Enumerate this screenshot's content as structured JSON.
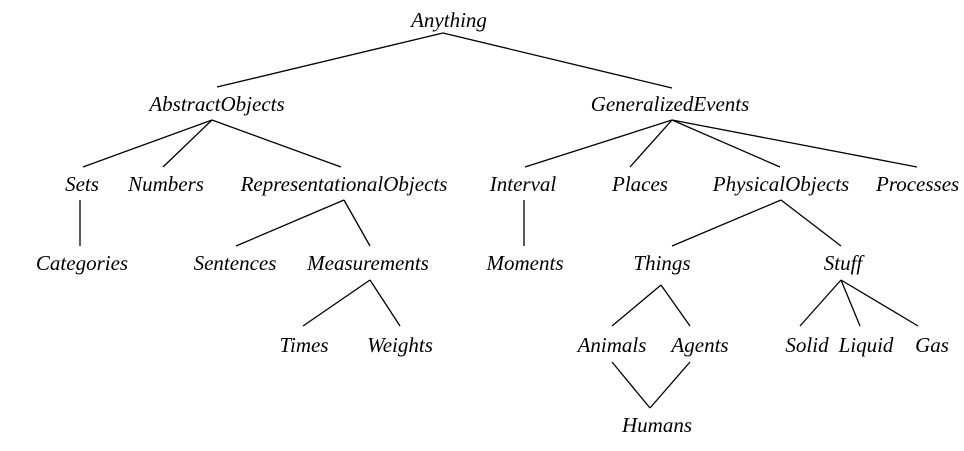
{
  "nodes": {
    "anything": "Anything",
    "abstract_objects": "AbstractObjects",
    "generalized_events": "GeneralizedEvents",
    "sets": "Sets",
    "numbers": "Numbers",
    "representational_objects": "RepresentationalObjects",
    "interval": "Interval",
    "places": "Places",
    "physical_objects": "PhysicalObjects",
    "processes": "Processes",
    "categories": "Categories",
    "sentences": "Sentences",
    "measurements": "Measurements",
    "moments": "Moments",
    "things": "Things",
    "stuff": "Stuff",
    "times": "Times",
    "weights": "Weights",
    "animals": "Animals",
    "agents": "Agents",
    "solid": "Solid",
    "liquid": "Liquid",
    "gas": "Gas",
    "humans": "Humans"
  },
  "edges": [
    [
      "anything",
      "abstract_objects"
    ],
    [
      "anything",
      "generalized_events"
    ],
    [
      "abstract_objects",
      "sets"
    ],
    [
      "abstract_objects",
      "numbers"
    ],
    [
      "abstract_objects",
      "representational_objects"
    ],
    [
      "generalized_events",
      "interval"
    ],
    [
      "generalized_events",
      "places"
    ],
    [
      "generalized_events",
      "physical_objects"
    ],
    [
      "generalized_events",
      "processes"
    ],
    [
      "sets",
      "categories"
    ],
    [
      "representational_objects",
      "sentences"
    ],
    [
      "representational_objects",
      "measurements"
    ],
    [
      "interval",
      "moments"
    ],
    [
      "physical_objects",
      "things"
    ],
    [
      "physical_objects",
      "stuff"
    ],
    [
      "measurements",
      "times"
    ],
    [
      "measurements",
      "weights"
    ],
    [
      "things",
      "animals"
    ],
    [
      "things",
      "agents"
    ],
    [
      "stuff",
      "solid"
    ],
    [
      "stuff",
      "liquid"
    ],
    [
      "stuff",
      "gas"
    ],
    [
      "animals",
      "humans"
    ],
    [
      "agents",
      "humans"
    ]
  ]
}
